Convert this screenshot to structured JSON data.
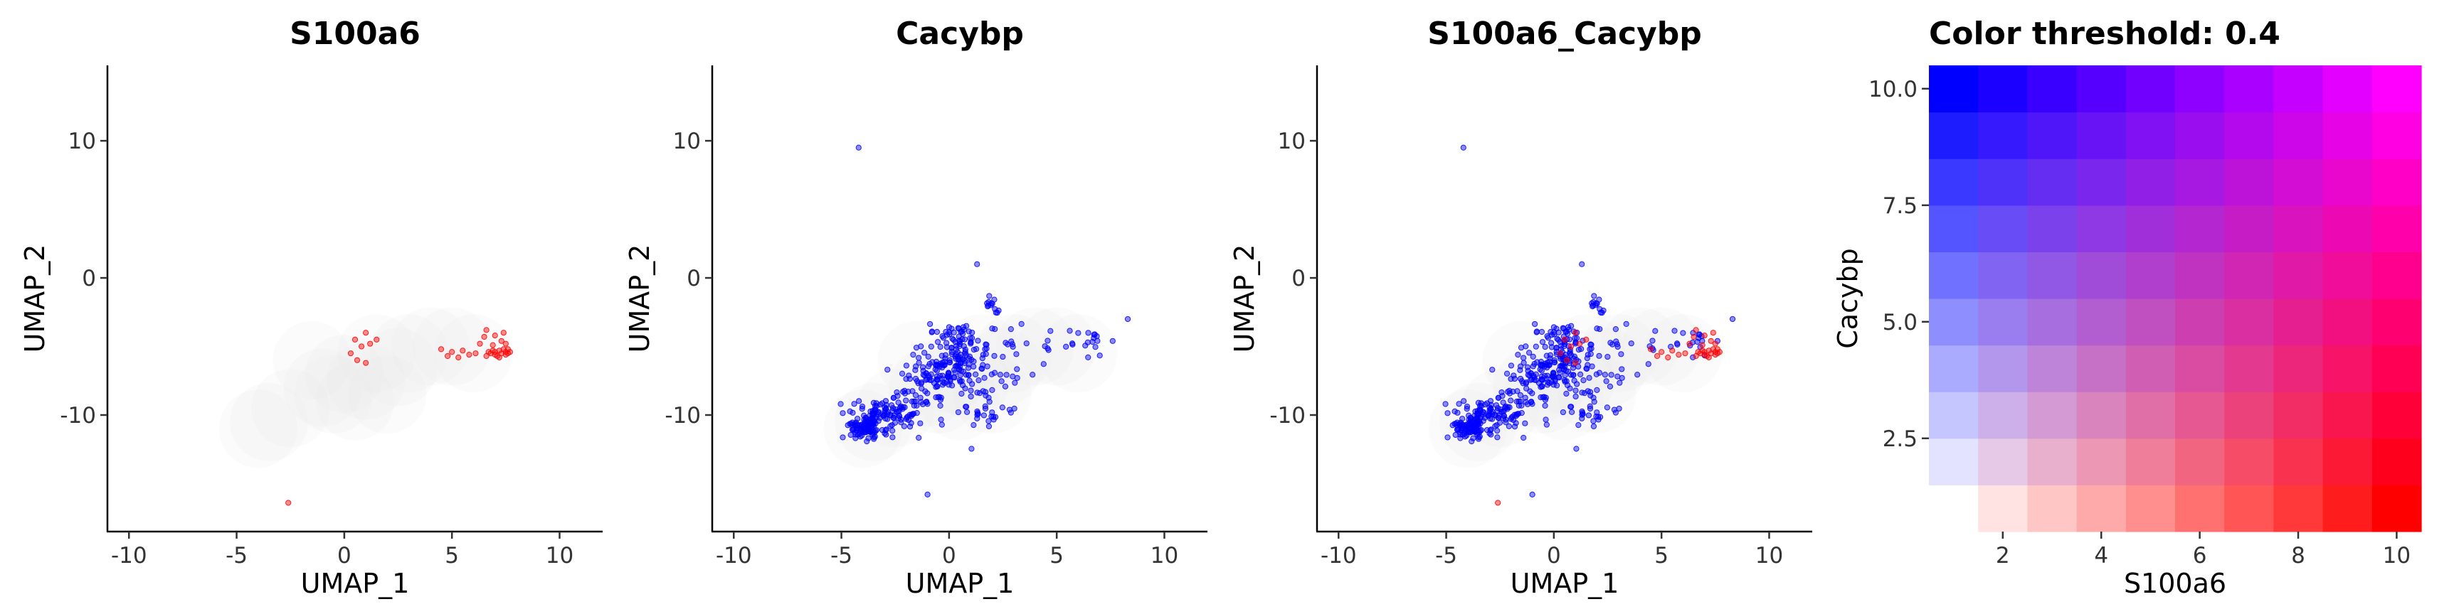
{
  "chart_data": [
    {
      "type": "scatter",
      "title": "S100a6",
      "xlabel": "UMAP_1",
      "ylabel": "UMAP_2",
      "xlim": [
        -11,
        12
      ],
      "ylim": [
        -18.5,
        15.5
      ],
      "xticks": [
        -10,
        -5,
        0,
        5,
        10
      ],
      "xtick_labels": [
        "-10",
        "-5",
        "0",
        "5",
        "10"
      ],
      "yticks": [
        10,
        0,
        -10
      ],
      "ytick_labels": [
        "10",
        "0",
        "-10"
      ],
      "background_points": [
        [
          -1.5,
          -6
        ],
        [
          -1,
          -8
        ],
        [
          0,
          -7
        ],
        [
          1,
          -7.5
        ],
        [
          1.5,
          -5.5
        ],
        [
          2,
          -8.5
        ],
        [
          -2.5,
          -9.5
        ],
        [
          -3.5,
          -10.5
        ],
        [
          -4,
          -11
        ],
        [
          0.5,
          -9
        ],
        [
          3,
          -5.5
        ],
        [
          4,
          -5
        ],
        [
          5,
          -5
        ],
        [
          6,
          -5.5
        ],
        [
          2.5,
          -6.5
        ],
        [
          -0.5,
          -8.5
        ]
      ],
      "series": [
        {
          "color": "#ff0000",
          "points": [
            [
              7.5,
              -5.4
            ],
            [
              7.6,
              -5.5
            ],
            [
              7.3,
              -5.5
            ],
            [
              7.0,
              -5.6
            ],
            [
              7.2,
              -5.3
            ],
            [
              6.8,
              -5.5
            ],
            [
              6.6,
              -5.7
            ],
            [
              7.4,
              -5.2
            ],
            [
              7.7,
              -5.4
            ],
            [
              7.1,
              -5.7
            ],
            [
              6.9,
              -5.3
            ],
            [
              7.5,
              -5.6
            ],
            [
              6.7,
              -5.4
            ],
            [
              7.2,
              -5.8
            ],
            [
              7.6,
              -5.2
            ],
            [
              7.0,
              -5.4
            ],
            [
              7.3,
              -4.6
            ],
            [
              7.0,
              -4.2
            ],
            [
              7.4,
              -4.0
            ],
            [
              6.6,
              -3.8
            ],
            [
              6.9,
              -4.9
            ],
            [
              6.3,
              -4.8
            ],
            [
              6.1,
              -5.5
            ],
            [
              5.8,
              -5.6
            ],
            [
              5.5,
              -5.3
            ],
            [
              5.0,
              -5.4
            ],
            [
              4.8,
              -5.7
            ],
            [
              5.3,
              -5.8
            ],
            [
              4.5,
              -5.2
            ],
            [
              6.5,
              -4.3
            ],
            [
              7.5,
              -4.8
            ],
            [
              1.0,
              -4.0
            ],
            [
              0.5,
              -4.5
            ],
            [
              1.2,
              -4.8
            ],
            [
              0.3,
              -5.5
            ],
            [
              0.8,
              -5.0
            ],
            [
              1.5,
              -4.5
            ],
            [
              0.6,
              -6.0
            ],
            [
              1.0,
              -6.2
            ],
            [
              -2.6,
              -16.4
            ]
          ]
        }
      ]
    },
    {
      "type": "scatter",
      "title": "Cacybp",
      "xlabel": "UMAP_1",
      "ylabel": "UMAP_2",
      "xlim": [
        -11,
        12
      ],
      "ylim": [
        -18.5,
        15.5
      ],
      "xticks": [
        -10,
        -5,
        0,
        5,
        10
      ],
      "xtick_labels": [
        "-10",
        "-5",
        "0",
        "5",
        "10"
      ],
      "yticks": [
        10,
        0,
        -10
      ],
      "ytick_labels": [
        "10",
        "0",
        "-10"
      ],
      "series": [
        {
          "color": "#0000ff",
          "clusters": [
            {
              "cx": -3.9,
              "cy": -10.8,
              "sx": 0.55,
              "sy": 0.55,
              "n": 110
            },
            {
              "cx": -2.8,
              "cy": -10.0,
              "sx": 0.8,
              "sy": 0.7,
              "n": 70
            },
            {
              "cx": -1.6,
              "cy": -8.6,
              "sx": 0.7,
              "sy": 0.9,
              "n": 45
            },
            {
              "cx": -0.8,
              "cy": -7.4,
              "sx": 0.6,
              "sy": 0.8,
              "n": 40
            },
            {
              "cx": -0.2,
              "cy": -6.6,
              "sx": 0.7,
              "sy": 0.8,
              "n": 60
            },
            {
              "cx": 0.6,
              "cy": -5.4,
              "sx": 0.8,
              "sy": 0.9,
              "n": 60
            },
            {
              "cx": 1.2,
              "cy": -7.6,
              "sx": 0.7,
              "sy": 1.2,
              "n": 30
            },
            {
              "cx": 1.8,
              "cy": -9.8,
              "sx": 0.6,
              "sy": 0.5,
              "n": 25
            },
            {
              "cx": 2.0,
              "cy": -2.1,
              "sx": 0.15,
              "sy": 0.5,
              "n": 14
            },
            {
              "cx": 2.5,
              "cy": -6.0,
              "sx": 1.2,
              "sy": 1.8,
              "n": 30
            },
            {
              "cx": 5.8,
              "cy": -4.8,
              "sx": 0.9,
              "sy": 0.6,
              "n": 22
            },
            {
              "cx": 0.0,
              "cy": -4.2,
              "sx": 0.6,
              "sy": 0.5,
              "n": 18
            }
          ],
          "points": [
            [
              -4.2,
              9.5
            ],
            [
              -1.0,
              -15.8
            ],
            [
              1.3,
              1.0
            ],
            [
              8.3,
              -3.0
            ],
            [
              7.6,
              -4.6
            ]
          ]
        }
      ]
    },
    {
      "type": "scatter",
      "title": "S100a6_Cacybp",
      "xlabel": "UMAP_1",
      "ylabel": "UMAP_2",
      "xlim": [
        -11,
        12
      ],
      "ylim": [
        -18.5,
        15.5
      ],
      "xticks": [
        -10,
        -5,
        0,
        5,
        10
      ],
      "xtick_labels": [
        "-10",
        "-5",
        "0",
        "5",
        "10"
      ],
      "yticks": [
        10,
        0,
        -10
      ],
      "ytick_labels": [
        "10",
        "0",
        "-10"
      ],
      "series": [
        {
          "color": "#0000ff",
          "from": "Cacybp"
        },
        {
          "color": "#ff0000",
          "from": "S100a6"
        }
      ]
    },
    {
      "type": "heatmap",
      "title": "Color threshold: 0.4",
      "xlabel": "S100a6",
      "ylabel": "Cacybp",
      "xlim": [
        0.5,
        10.5
      ],
      "ylim": [
        0.5,
        10.5
      ],
      "xticks": [
        2,
        4,
        6,
        8,
        10
      ],
      "xtick_labels": [
        "2",
        "4",
        "6",
        "8",
        "10"
      ],
      "yticks": [
        2.5,
        5.0,
        7.5,
        10.0
      ],
      "ytick_labels": [
        "2.5",
        "5.0",
        "7.5",
        "10.0"
      ],
      "grid_size": 10,
      "low_color": "#ffffff",
      "x_color": "#ff0000",
      "y_color": "#0000ff",
      "both_color": "#ff00ff"
    }
  ]
}
